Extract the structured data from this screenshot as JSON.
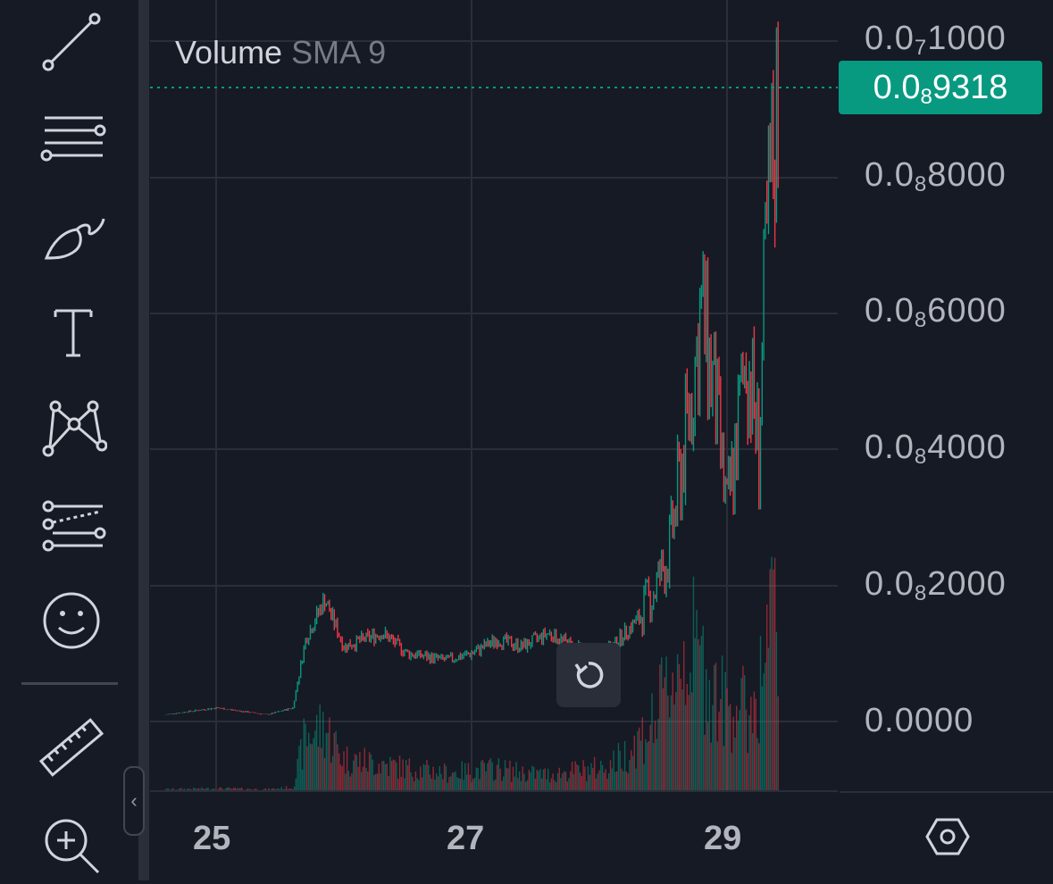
{
  "toolbar": {
    "items": [
      {
        "icon": "trend-line-icon"
      },
      {
        "icon": "horizontal-lines-icon"
      },
      {
        "icon": "brush-icon"
      },
      {
        "icon": "text-icon"
      },
      {
        "icon": "pattern-icon"
      },
      {
        "icon": "fib-lines-icon"
      },
      {
        "icon": "emoji-icon"
      },
      {
        "icon": "ruler-icon"
      },
      {
        "icon": "zoom-in-icon"
      }
    ],
    "collapse_icon": "‹"
  },
  "legend": {
    "name": "Volume",
    "param": "SMA 9"
  },
  "price_axis": {
    "current_price": {
      "prefix": "0.0",
      "sub": "8",
      "digits": "9318"
    },
    "labels": [
      {
        "prefix": "0.0",
        "sub": "7",
        "digits": "1000"
      },
      {
        "prefix": "0.0",
        "sub": "8",
        "digits": "8000"
      },
      {
        "prefix": "0.0",
        "sub": "8",
        "digits": "6000"
      },
      {
        "prefix": "0.0",
        "sub": "8",
        "digits": "4000"
      },
      {
        "prefix": "0.0",
        "sub": "8",
        "digits": "2000"
      },
      {
        "prefix": "0.0000",
        "sub": "",
        "digits": ""
      }
    ]
  },
  "time_axis": {
    "labels": [
      "25",
      "27",
      "29"
    ]
  },
  "colors": {
    "up": "#089981",
    "down": "#f23645",
    "background": "#161a24",
    "grid": "#2a2e39"
  },
  "chart_data": {
    "type": "line",
    "title": "",
    "x": [
      24.6,
      25.0,
      25.4,
      25.6,
      25.7,
      25.85,
      26.0,
      26.3,
      26.5,
      26.8,
      27.0,
      27.2,
      27.4,
      27.6,
      27.8,
      28.0,
      28.1,
      28.2,
      28.3,
      28.45,
      28.55,
      28.7,
      28.8,
      28.9,
      29.0,
      29.1,
      29.15,
      29.25,
      29.3,
      29.35,
      29.4
    ],
    "series": [
      {
        "values": [
          1e-10,
          2e-10,
          1e-10,
          2e-10,
          1.2e-09,
          1.8e-09,
          1.1e-09,
          1.3e-09,
          1e-09,
          9e-10,
          1e-09,
          1.2e-09,
          1.1e-09,
          1.3e-09,
          1.1e-09,
          1e-09,
          1.1e-09,
          1.3e-09,
          1.5e-09,
          2e-09,
          2.5e-09,
          4.5e-09,
          6e-09,
          4.8e-09,
          3e-09,
          4.5e-09,
          5.5e-09,
          4e-09,
          6.5e-09,
          8e-09,
          9.3e-09
        ]
      }
    ],
    "volume": [
      2,
      3,
      2,
      4,
      60,
      70,
      35,
      30,
      25,
      20,
      22,
      25,
      20,
      18,
      22,
      25,
      30,
      40,
      55,
      80,
      120,
      160,
      140,
      110,
      90,
      100,
      80,
      110,
      150,
      180,
      200
    ],
    "ylim": [
      0,
      1e-08
    ],
    "y_ticks": [
      "0.0₇1000",
      "0.0₈8000",
      "0.0₈6000",
      "0.0₈4000",
      "0.0₈2000",
      "0.0000"
    ],
    "x_ticks": [
      "25",
      "27",
      "29"
    ],
    "last_price": "0.0₈9318",
    "grid": true
  }
}
